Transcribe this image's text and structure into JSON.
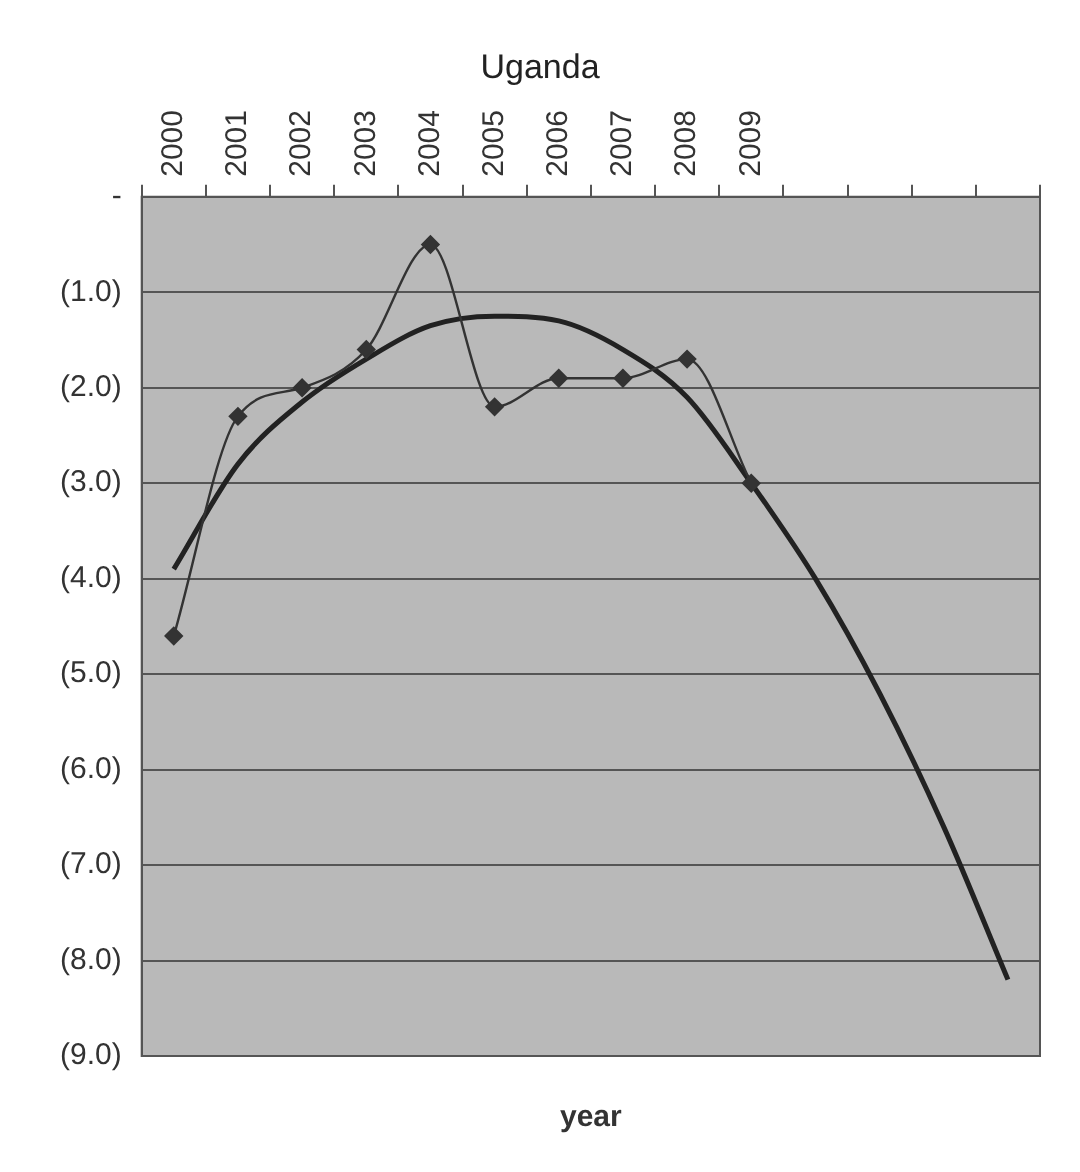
{
  "chart_data": {
    "type": "line",
    "title": "Uganda",
    "xlabel": "year",
    "categories": [
      "2000",
      "2001",
      "2002",
      "2003",
      "2004",
      "2005",
      "2006",
      "2007",
      "2008",
      "2009",
      null,
      null,
      null,
      null
    ],
    "series": [
      {
        "color": "#333333",
        "marker": "diamond",
        "values": [
          -4.6,
          -2.3,
          -2.0,
          -1.6,
          -0.5,
          -2.2,
          -1.9,
          -1.9,
          -1.7,
          -3.0,
          null,
          null,
          null,
          null
        ]
      },
      {
        "color": "#222222",
        "marker": "none",
        "values": [
          -3.9,
          -2.8,
          -2.15,
          -1.7,
          -1.35,
          -1.25,
          -1.3,
          -1.6,
          -2.1,
          -3.0,
          -4.0,
          -5.2,
          -6.6,
          -8.2
        ]
      }
    ],
    "ylim": [
      -9,
      0
    ],
    "yticks": [
      {
        "value": 0,
        "label": "-"
      },
      {
        "value": -1,
        "label": "(1.0)"
      },
      {
        "value": -2,
        "label": "(2.0)"
      },
      {
        "value": -3,
        "label": "(3.0)"
      },
      {
        "value": -4,
        "label": "(4.0)"
      },
      {
        "value": -5,
        "label": "(5.0)"
      },
      {
        "value": -6,
        "label": "(6.0)"
      },
      {
        "value": -7,
        "label": "(7.0)"
      },
      {
        "value": -8,
        "label": "(8.0)"
      },
      {
        "value": -9,
        "label": "(9.0)"
      }
    ],
    "grid": "y",
    "legend": false
  }
}
